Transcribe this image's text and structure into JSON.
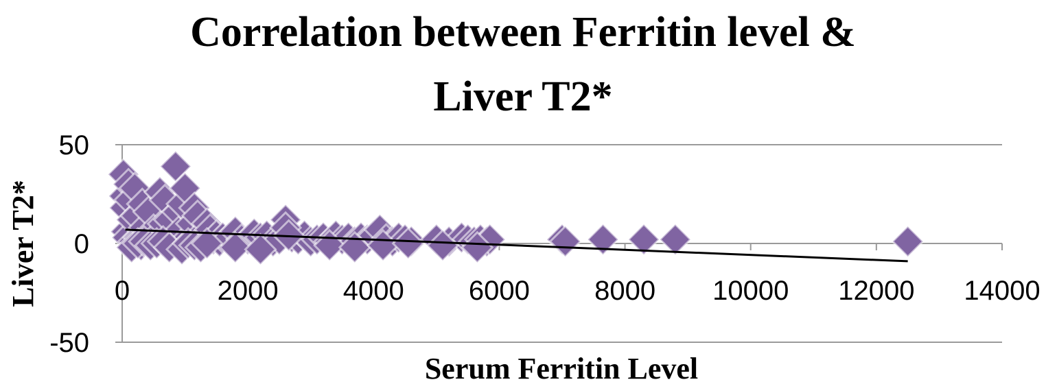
{
  "chart_data": {
    "type": "scatter",
    "title_lines": [
      "Correlation between Ferritin level &",
      "Liver T2*"
    ],
    "xlabel": "Serum Ferritin Level",
    "ylabel": "Liver T2*",
    "xlim": [
      0,
      14000
    ],
    "ylim": [
      -50,
      50
    ],
    "x_ticks": [
      "0",
      "2000",
      "4000",
      "6000",
      "8000",
      "10000",
      "12000",
      "14000"
    ],
    "y_ticks": [
      "50",
      "0",
      "-50"
    ],
    "grid": "horizontal",
    "legend": "none",
    "marker": "diamond",
    "marker_color": "#8064a2",
    "trendline_color": "#000000",
    "trendline": {
      "x": [
        50,
        12500
      ],
      "y": [
        7,
        -9
      ]
    },
    "x": [
      20,
      30,
      40,
      60,
      80,
      100,
      120,
      150,
      180,
      200,
      220,
      260,
      300,
      320,
      350,
      400,
      420,
      450,
      500,
      520,
      550,
      600,
      650,
      680,
      700,
      750,
      800,
      850,
      880,
      900,
      950,
      1000,
      1050,
      1100,
      1150,
      1200,
      1250,
      1300,
      1350,
      1400,
      1450,
      1500,
      1550,
      1600,
      1700,
      1800,
      1900,
      2000,
      2100,
      2200,
      2300,
      2400,
      2500,
      2600,
      2700,
      2800,
      2900,
      3000,
      3100,
      3200,
      3300,
      3400,
      3500,
      3600,
      3700,
      3800,
      3900,
      4000,
      4100,
      4200,
      4300,
      4400,
      4500,
      4600,
      5000,
      5200,
      5400,
      5500,
      5600,
      5700,
      5800,
      5850,
      7000,
      7050,
      7650,
      8300,
      8800,
      12500,
      150,
      250,
      350,
      450,
      550,
      650,
      750,
      950,
      1050,
      1150,
      1250,
      1350,
      2600,
      2650,
      1800,
      2200,
      3300,
      3700,
      4150,
      4550,
      5100,
      5650
    ],
    "y": [
      35,
      24,
      18,
      6,
      3,
      30,
      22,
      12,
      1,
      28,
      14,
      3,
      -1,
      20,
      8,
      1,
      16,
      2,
      7,
      1,
      4,
      26,
      10,
      22,
      1,
      12,
      2,
      39,
      16,
      6,
      20,
      28,
      3,
      10,
      18,
      14,
      1,
      6,
      10,
      7,
      2,
      4,
      1,
      3,
      3,
      6,
      2,
      2,
      5,
      3,
      4,
      1,
      2,
      12,
      3,
      2,
      4,
      1,
      2,
      3,
      1,
      4,
      2,
      3,
      1,
      3,
      2,
      4,
      7,
      2,
      1,
      3,
      2,
      1,
      2,
      1,
      3,
      2,
      1,
      2,
      1,
      2,
      2,
      1,
      2,
      2,
      2,
      1,
      -2,
      0,
      1,
      -1,
      0,
      1,
      -2,
      -3,
      0,
      -1,
      -2,
      0,
      8,
      4,
      -2,
      -3,
      -1,
      -2,
      -1,
      0,
      -1,
      -2
    ]
  }
}
